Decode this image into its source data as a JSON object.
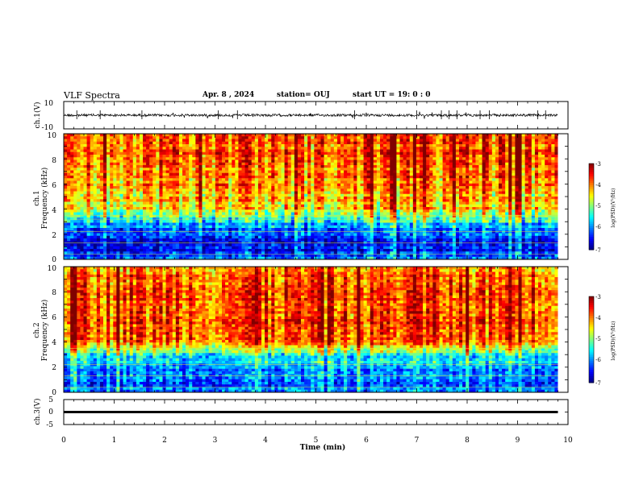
{
  "header": {
    "title": "VLF Spectra",
    "date": "Apr. 8 , 2024",
    "station": "station= OUJ",
    "start": "start UT = 19: 0 : 0"
  },
  "chart_data": [
    {
      "type": "line",
      "panel": "ch1-waveform",
      "ylabel": "ch.1(V)",
      "ylim": [
        -10,
        10
      ],
      "yticks": [
        "10",
        "-10"
      ],
      "xlim": [
        0,
        10
      ],
      "series": [
        {
          "approx_level": 0,
          "approx_noise_amplitude": 1.5,
          "color": "#000000"
        }
      ]
    },
    {
      "type": "heatmap",
      "panel": "ch1-spectrogram",
      "ylabel": [
        "ch.1",
        "Frequency (kHz)"
      ],
      "ylim": [
        0,
        10
      ],
      "yticks": [
        "0",
        "2",
        "4",
        "6",
        "8",
        "10"
      ],
      "xlim": [
        0,
        9.8
      ],
      "colorbar": {
        "label": "log(PSD)(V²/Hz)",
        "range": [
          -7,
          -3
        ],
        "ticks": [
          "-3",
          "-4",
          "-5",
          "-6",
          "-7"
        ]
      },
      "profile": {
        "freq_kHz": [
          0,
          0.5,
          1.0,
          1.5,
          2.0,
          2.5,
          3.0,
          3.5,
          4.0,
          5.0,
          6.0,
          7.0,
          8.0,
          9.0,
          10.0
        ],
        "mean_log_psd": [
          -6.2,
          -6.4,
          -6.6,
          -6.4,
          -6.2,
          -6.1,
          -5.6,
          -5.0,
          -4.5,
          -4.3,
          -4.1,
          -4.0,
          -3.9,
          -3.9,
          -4.0
        ]
      }
    },
    {
      "type": "heatmap",
      "panel": "ch2-spectrogram",
      "ylabel": [
        "ch.2",
        "Frequency (kHz)"
      ],
      "ylim": [
        0,
        10
      ],
      "yticks": [
        "0",
        "2",
        "4",
        "6",
        "8",
        "10"
      ],
      "xlim": [
        0,
        9.8
      ],
      "colorbar": {
        "label": "log(PSD)(V²/Hz)",
        "range": [
          -7,
          -3
        ],
        "ticks": [
          "-3",
          "-4",
          "-5",
          "-6",
          "-7"
        ]
      },
      "profile": {
        "freq_kHz": [
          0,
          0.5,
          1.0,
          1.5,
          2.0,
          2.5,
          3.0,
          3.5,
          4.0,
          5.0,
          6.0,
          7.0,
          8.0,
          9.0,
          10.0
        ],
        "mean_log_psd": [
          -5.9,
          -6.1,
          -6.2,
          -6.0,
          -5.9,
          -5.6,
          -5.3,
          -4.7,
          -4.0,
          -3.8,
          -3.7,
          -3.7,
          -3.7,
          -3.8,
          -3.9
        ]
      }
    },
    {
      "type": "line",
      "panel": "ch3-waveform",
      "ylabel": "ch.3(V)",
      "ylim": [
        -5,
        5
      ],
      "yticks": [
        "5",
        "0",
        "-5"
      ],
      "xlim": [
        0,
        9.8
      ],
      "series": [
        {
          "approx_level": 0,
          "color": "#000000"
        }
      ]
    }
  ],
  "time_axis": {
    "xlabel": "Time (min)",
    "ticks": [
      "0",
      "1",
      "2",
      "3",
      "4",
      "5",
      "6",
      "7",
      "8",
      "9",
      "10"
    ]
  }
}
